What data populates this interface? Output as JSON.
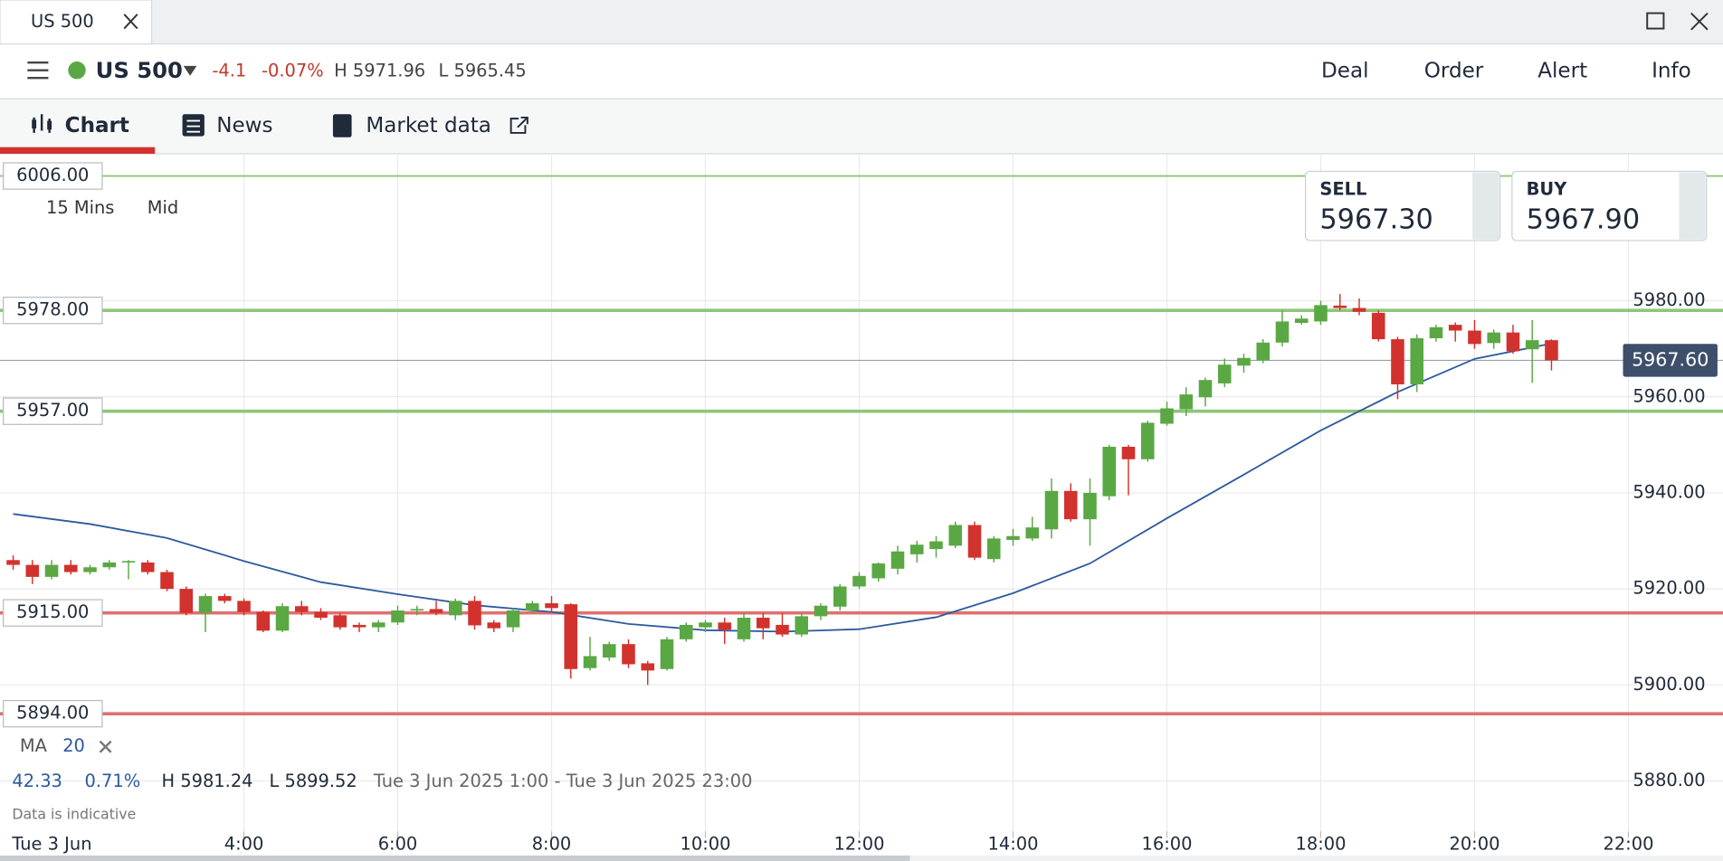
{
  "window_tab": {
    "title": "US 500"
  },
  "header": {
    "instrument": "US 500",
    "change": "-4.1",
    "change_pct": "-0.07%",
    "high": "H 5971.96",
    "low": "L 5965.45",
    "menu": [
      "Deal",
      "Order",
      "Alert",
      "Info"
    ]
  },
  "tabs": [
    "Chart",
    "News",
    "Market data"
  ],
  "chart_settings": {
    "interval": "15 Mins",
    "price_type": "Mid"
  },
  "quote": {
    "sell_label": "SELL",
    "sell": "5967.30",
    "buy_label": "BUY",
    "buy": "5967.90"
  },
  "summary": {
    "change": "42.33",
    "change_pct": "0.71%",
    "high": "H 5981.24",
    "low": "L 5899.52",
    "range": "Tue 3 Jun 2025 1:00 - Tue 3 Jun 2025 23:00",
    "note": "Data is indicative",
    "date": "Tue 3 Jun"
  },
  "chart_data": {
    "type": "candlestick",
    "up_color": "#5aa844",
    "down_color": "#d2322d",
    "grid": true,
    "xlim": [
      0.829,
      23.23
    ],
    "ylim": [
      5869.5,
      6010.4
    ],
    "xticks": [
      {
        "value": 4,
        "label": "4:00"
      },
      {
        "value": 6,
        "label": "6:00"
      },
      {
        "value": 8,
        "label": "8:00"
      },
      {
        "value": 10,
        "label": "10:00"
      },
      {
        "value": 12,
        "label": "12:00"
      },
      {
        "value": 14,
        "label": "14:00"
      },
      {
        "value": 16,
        "label": "16:00"
      },
      {
        "value": 18,
        "label": "18:00"
      },
      {
        "value": 20,
        "label": "20:00"
      },
      {
        "value": 22,
        "label": "22:00"
      }
    ],
    "yticks": [
      {
        "value": 5880,
        "label": "5880.00"
      },
      {
        "value": 5900,
        "label": "5900.00"
      },
      {
        "value": 5920,
        "label": "5920.00"
      },
      {
        "value": 5940,
        "label": "5940.00"
      },
      {
        "value": 5960,
        "label": "5960.00"
      },
      {
        "value": 5980,
        "label": "5980.00"
      }
    ],
    "x": [
      1,
      1.25,
      1.5,
      1.75,
      2,
      2.25,
      2.5,
      2.75,
      3,
      3.25,
      3.5,
      3.75,
      4,
      4.25,
      4.5,
      4.75,
      5,
      5.25,
      5.5,
      5.75,
      6,
      6.25,
      6.5,
      6.75,
      7,
      7.25,
      7.5,
      7.75,
      8,
      8.25,
      8.5,
      8.75,
      9,
      9.25,
      9.5,
      9.75,
      10,
      10.25,
      10.5,
      10.75,
      11,
      11.25,
      11.5,
      11.75,
      12,
      12.25,
      12.5,
      12.75,
      13,
      13.25,
      13.5,
      13.75,
      14,
      14.25,
      14.5,
      14.75,
      15,
      15.25,
      15.5,
      15.75,
      16,
      16.25,
      16.5,
      16.75,
      17,
      17.25,
      17.5,
      17.75,
      18,
      18.25,
      18.5,
      18.75,
      19,
      19.25,
      19.5,
      19.75,
      20,
      20.25,
      20.5,
      20.75,
      21
    ],
    "open": [
      5926,
      5925,
      5922.5,
      5925,
      5923.5,
      5924.5,
      5925.5,
      5925.5,
      5923.5,
      5920,
      5915,
      5918.5,
      5917.5,
      5915.2,
      5911.3,
      5916.4,
      5915.2,
      5914.5,
      5912.5,
      5912,
      5913,
      5915.5,
      5915.8,
      5914.5,
      5917.5,
      5913,
      5912,
      5915.5,
      5917,
      5916.8,
      5903.5,
      5905.7,
      5908.5,
      5904.5,
      5903.3,
      5909.5,
      5912,
      5913,
      5909.5,
      5914,
      5912.5,
      5910.5,
      5914.3,
      5916.3,
      5920.5,
      5922.2,
      5924.2,
      5927.2,
      5928.3,
      5929,
      5933.3,
      5926.2,
      5930.2,
      5930.5,
      5932.4,
      5940.4,
      5934.5,
      5939.3,
      5949.6,
      5947,
      5954.4,
      5957.4,
      5959.9,
      5962.8,
      5966.5,
      5967.6,
      5971.3,
      5975.4,
      5975.7,
      5979,
      5978.5,
      5977.5,
      5972,
      5962.6,
      5972.2,
      5975,
      5973.8,
      5971.2,
      5973.4,
      5969.9,
      5971.8
    ],
    "high": [
      5927,
      5926,
      5926,
      5926,
      5925,
      5926,
      5926,
      5926,
      5924,
      5920.5,
      5919,
      5919,
      5918,
      5915.5,
      5917,
      5917.5,
      5916,
      5915,
      5913,
      5913.5,
      5916.5,
      5916.5,
      5917.5,
      5918,
      5918.5,
      5913.5,
      5916,
      5917.5,
      5918.5,
      5917,
      5910,
      5909,
      5909.5,
      5905,
      5910,
      5913,
      5913.5,
      5914,
      5915,
      5915,
      5915,
      5915,
      5917,
      5921,
      5923.5,
      5925.5,
      5929,
      5930,
      5931,
      5934,
      5934,
      5931,
      5932.5,
      5935,
      5943,
      5942,
      5943,
      5950,
      5950,
      5955,
      5959,
      5962,
      5964,
      5968,
      5969,
      5972,
      5978,
      5977,
      5980,
      5981.4,
      5980.5,
      5978,
      5972.5,
      5973,
      5975,
      5975.5,
      5976,
      5974,
      5975,
      5976,
      5972
    ],
    "low": [
      5924,
      5921,
      5922,
      5923,
      5923,
      5924,
      5922,
      5923,
      5919.5,
      5914.5,
      5911,
      5917,
      5914.5,
      5911,
      5911,
      5914.5,
      5913.5,
      5911.5,
      5911,
      5911,
      5912.5,
      5914.5,
      5914.5,
      5913.5,
      5911.5,
      5911,
      5911,
      5915,
      5915,
      5901.3,
      5903,
      5905,
      5903.5,
      5900,
      5903,
      5909,
      5911,
      5908.5,
      5909,
      5909.5,
      5910,
      5910,
      5913.5,
      5915.5,
      5920,
      5921.5,
      5923,
      5925.5,
      5926.5,
      5928.5,
      5926,
      5925.5,
      5929,
      5930,
      5930.5,
      5934,
      5929,
      5938.5,
      5939.5,
      5946.5,
      5954,
      5956,
      5958,
      5962,
      5965,
      5967,
      5970.5,
      5975,
      5975,
      5978,
      5977,
      5971.5,
      5959.5,
      5961,
      5971.5,
      5971.5,
      5970,
      5970,
      5969,
      5962.9,
      5965.5
    ],
    "close": [
      5925,
      5922.5,
      5925,
      5923.5,
      5924.5,
      5925.5,
      5925.8,
      5923.5,
      5920,
      5915,
      5918.5,
      5917.5,
      5915.2,
      5911.3,
      5916.4,
      5915.2,
      5914,
      5912,
      5912,
      5913,
      5915.5,
      5915.8,
      5915,
      5917.5,
      5912.4,
      5911.8,
      5915.5,
      5917,
      5916,
      5903.3,
      5906,
      5908.5,
      5904.3,
      5903,
      5909.5,
      5912.5,
      5913,
      5911.5,
      5914,
      5911.8,
      5910.5,
      5914.3,
      5916.5,
      5920.5,
      5922.7,
      5925.3,
      5927.8,
      5929.2,
      5929.9,
      5933.3,
      5926.5,
      5930.5,
      5931,
      5932.8,
      5940.4,
      5934.5,
      5940,
      5949.6,
      5947,
      5954.6,
      5957.6,
      5960.5,
      5963.5,
      5966.7,
      5968.1,
      5971.3,
      5975.7,
      5976.3,
      5979.1,
      5978.5,
      5977.7,
      5972,
      5962.6,
      5972.2,
      5974.5,
      5973.8,
      5971,
      5973.4,
      5969.5,
      5971.8,
      5967.6
    ],
    "ma": {
      "name": "MA",
      "period": 20,
      "color": "#2c5a9e",
      "x": [
        1,
        2,
        3,
        4,
        5,
        6,
        7,
        8,
        9,
        10,
        11,
        12,
        13,
        14,
        15,
        16,
        17,
        18,
        19,
        20,
        21
      ],
      "values": [
        5935.6,
        5933.5,
        5930.6,
        5925.8,
        5921.4,
        5918.9,
        5916.6,
        5915.2,
        5912.7,
        5911.4,
        5911.1,
        5911.6,
        5914.1,
        5919.1,
        5925.3,
        5934.7,
        5943.8,
        5953.0,
        5961.0,
        5967.9,
        5971.1
      ]
    },
    "levels": [
      {
        "value": 6006,
        "label": "6006.00",
        "color": "#8dc67a"
      },
      {
        "value": 5978,
        "label": "5978.00",
        "color": "#8dc67a"
      },
      {
        "value": 5957,
        "label": "5957.00",
        "color": "#8dc67a"
      },
      {
        "value": 5915,
        "label": "5915.00",
        "color": "#e07070"
      },
      {
        "value": 5894,
        "label": "5894.00",
        "color": "#e07070"
      }
    ],
    "last_price": {
      "value": 5967.6,
      "label": "5967.60"
    }
  }
}
